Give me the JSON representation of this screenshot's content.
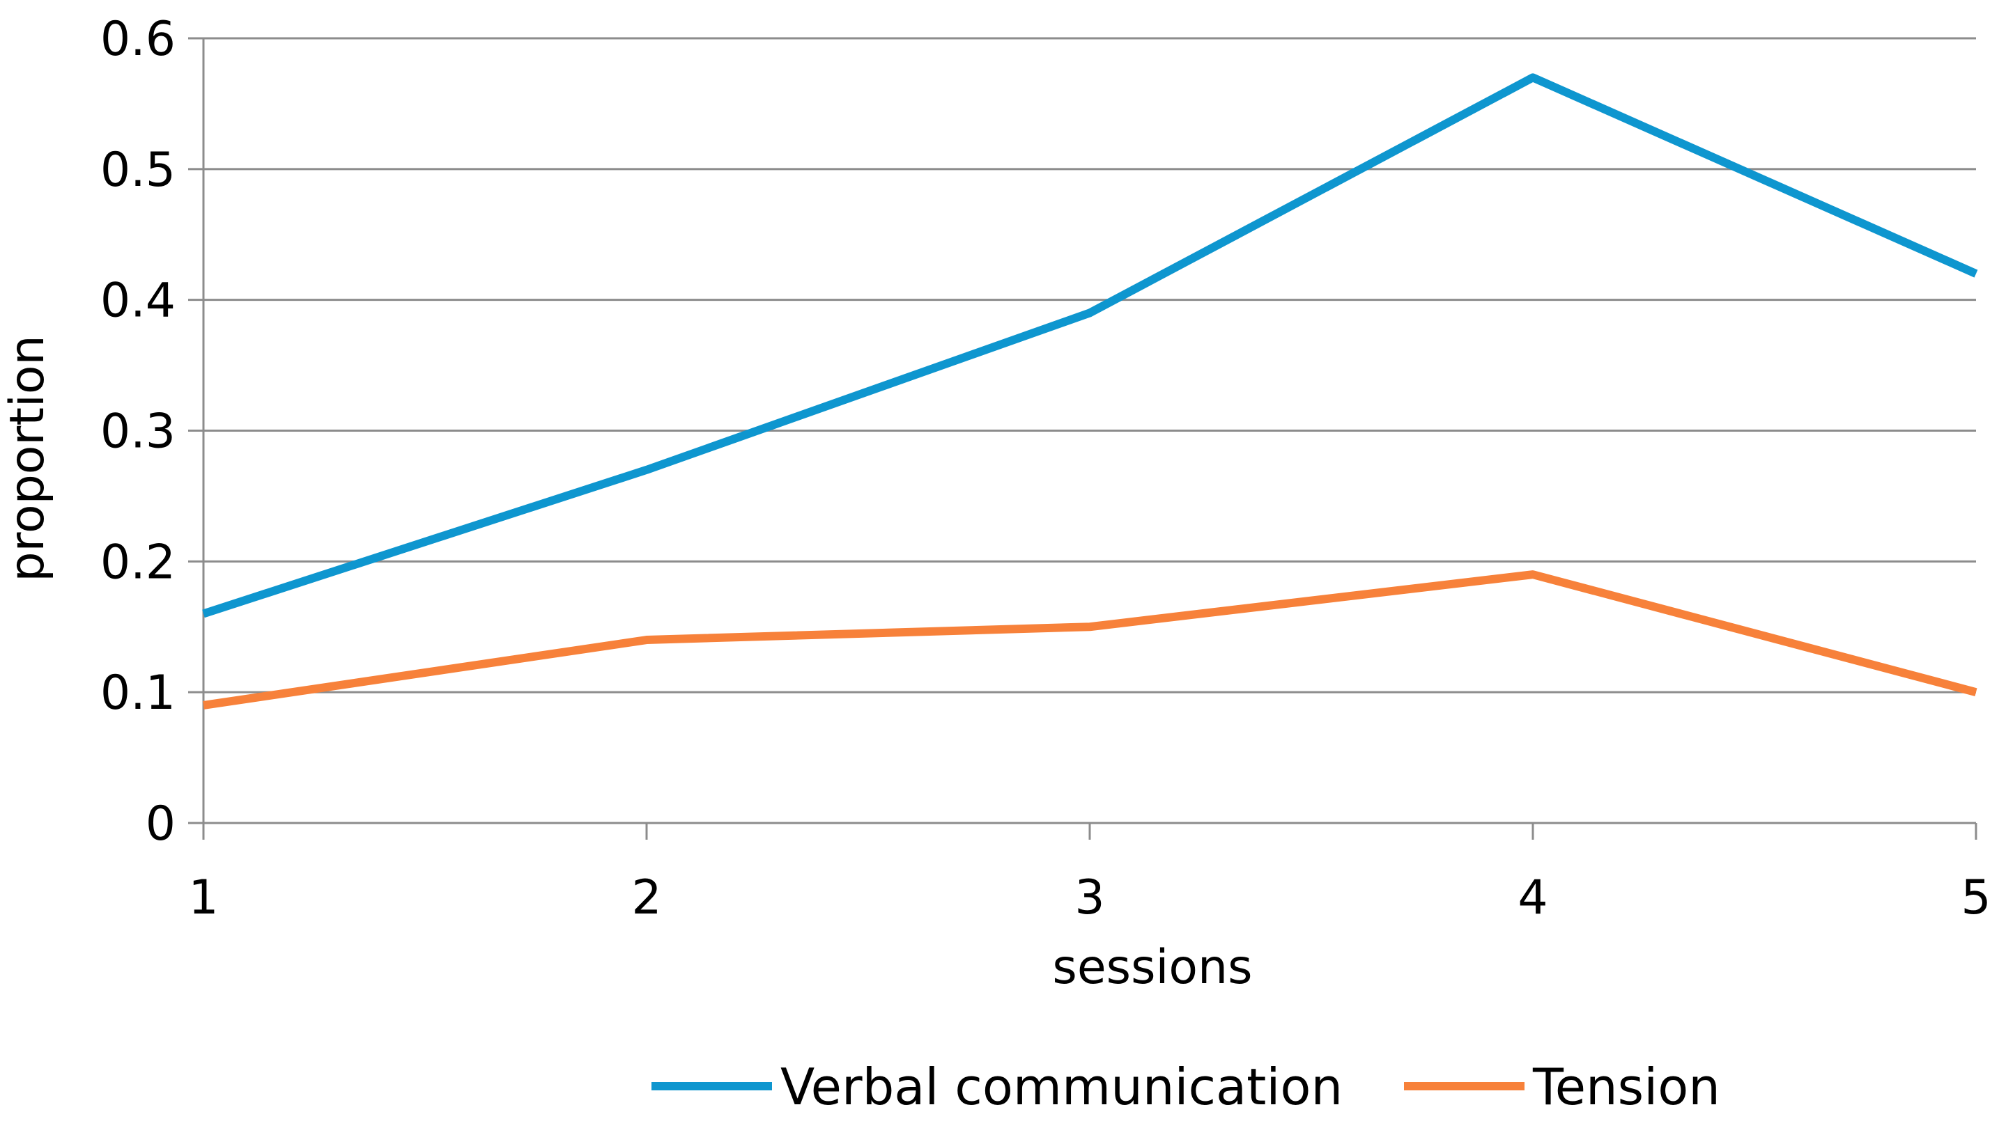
{
  "chart_data": {
    "type": "line",
    "x": [
      1,
      2,
      3,
      4,
      5
    ],
    "x_tick_labels": [
      "1",
      "2",
      "3",
      "4",
      "5"
    ],
    "xlabel": "sessions",
    "ylabel": "proportion",
    "ylim": [
      0,
      0.6
    ],
    "y_ticks": [
      0,
      0.1,
      0.2,
      0.3,
      0.4,
      0.5,
      0.6
    ],
    "y_tick_labels": [
      "0",
      "0.1",
      "0.2",
      "0.3",
      "0.4",
      "0.5",
      "0.6"
    ],
    "grid": true,
    "legend_position": "bottom",
    "series": [
      {
        "name": "Verbal communication",
        "color": "#0E96CF",
        "values": [
          0.16,
          0.27,
          0.39,
          0.57,
          0.42
        ]
      },
      {
        "name": "Tension",
        "color": "#F7813A",
        "values": [
          0.09,
          0.14,
          0.15,
          0.19,
          0.1
        ]
      }
    ]
  }
}
